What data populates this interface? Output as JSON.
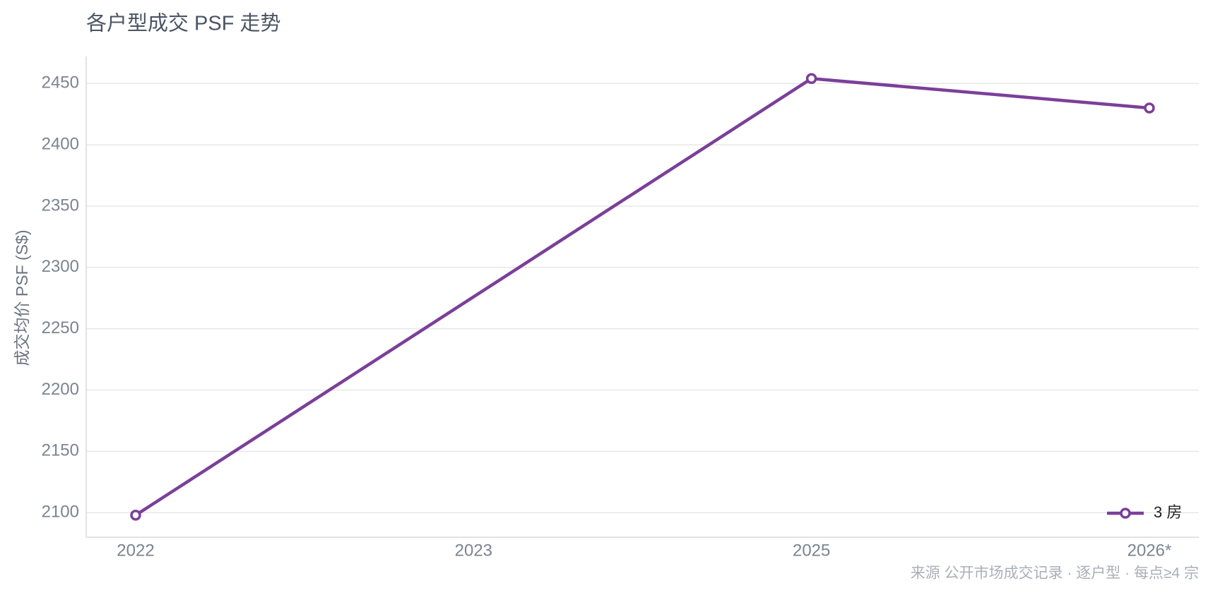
{
  "chart_data": {
    "type": "line",
    "title": "各户型成交 PSF 走势",
    "y_label": "成交均价 PSF (S$)",
    "categories": [
      "2022",
      "2023",
      "2025",
      "2026*"
    ],
    "series": [
      {
        "name": "3 房",
        "color": "#7b3f99",
        "values": [
          2098,
          null,
          2454,
          2430
        ]
      }
    ],
    "connect_gaps": true,
    "ylim": [
      2080,
      2472
    ],
    "yticks": [
      2100,
      2150,
      2200,
      2250,
      2300,
      2350,
      2400,
      2450
    ],
    "grid": true,
    "legend": "lower right",
    "footnote": "来源 公开市场成交记录 · 逐户型 · 每点≥4 宗"
  }
}
